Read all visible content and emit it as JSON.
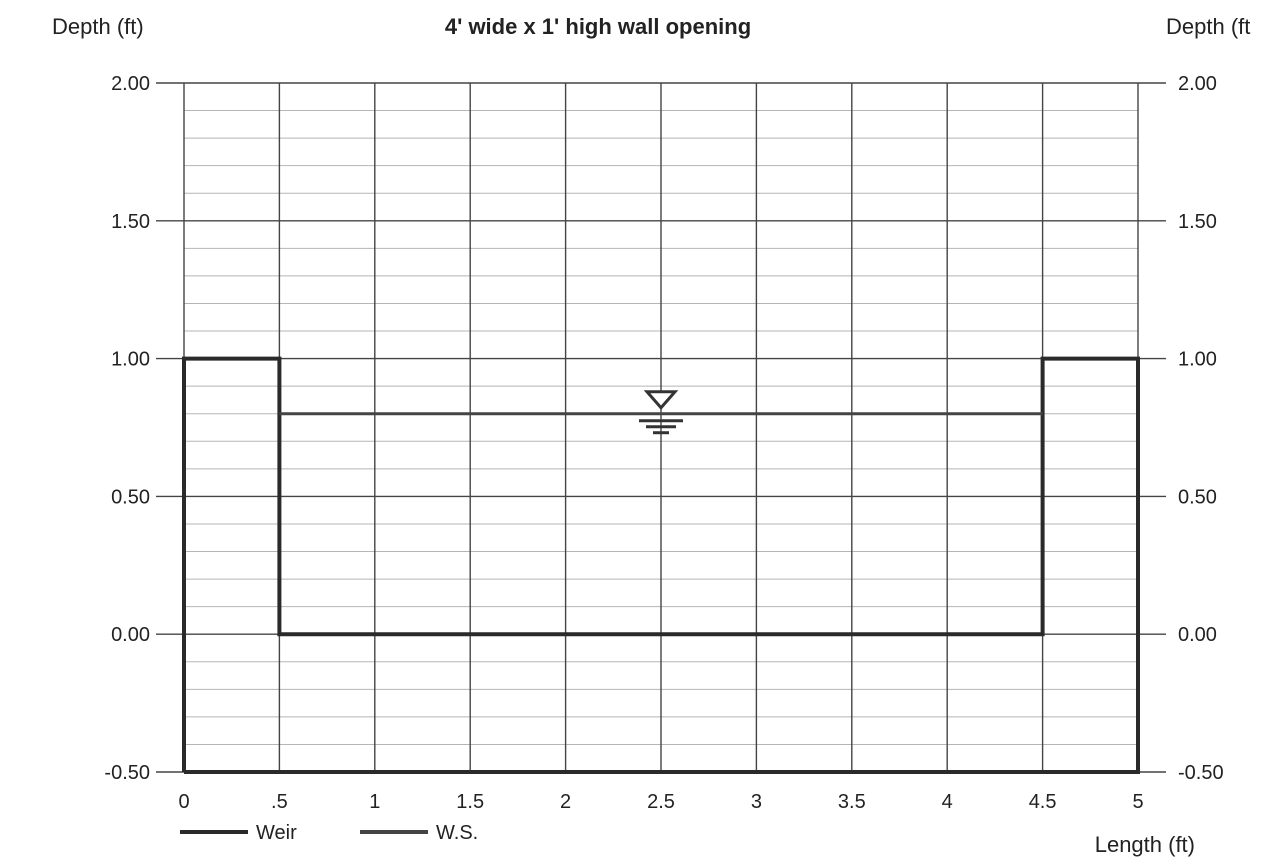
{
  "chart_data": {
    "type": "line",
    "title": "4' wide x 1' high wall opening",
    "ylabel_left": "Depth (ft)",
    "ylabel_right": "Depth (ft",
    "xlabel": "Length (ft)",
    "xlim": [
      0,
      5
    ],
    "ylim": [
      -0.5,
      2.0
    ],
    "x_ticks": [
      {
        "value": 0,
        "label": "0"
      },
      {
        "value": 0.5,
        "label": ".5"
      },
      {
        "value": 1,
        "label": "1"
      },
      {
        "value": 1.5,
        "label": "1.5"
      },
      {
        "value": 2,
        "label": "2"
      },
      {
        "value": 2.5,
        "label": "2.5"
      },
      {
        "value": 3,
        "label": "3"
      },
      {
        "value": 3.5,
        "label": "3.5"
      },
      {
        "value": 4,
        "label": "4"
      },
      {
        "value": 4.5,
        "label": "4.5"
      },
      {
        "value": 5,
        "label": "5"
      }
    ],
    "y_ticks": [
      {
        "value": 2.0,
        "label": "2.00"
      },
      {
        "value": 1.5,
        "label": "1.50"
      },
      {
        "value": 1.0,
        "label": "1.00"
      },
      {
        "value": 0.5,
        "label": "0.50"
      },
      {
        "value": 0.0,
        "label": "0.00"
      },
      {
        "value": -0.5,
        "label": "-0.50"
      }
    ],
    "minor_y_step": 0.1,
    "grid": true,
    "legend_position": "bottom-left",
    "series": [
      {
        "name": "Weir",
        "color": "#2a2a2a",
        "points": [
          [
            0,
            -0.5
          ],
          [
            0,
            1.0
          ],
          [
            0.5,
            1.0
          ],
          [
            0.5,
            0.0
          ],
          [
            4.5,
            0.0
          ],
          [
            4.5,
            1.0
          ],
          [
            5,
            1.0
          ],
          [
            5,
            -0.5
          ],
          [
            0,
            -0.5
          ]
        ]
      },
      {
        "name": "W.S.",
        "color": "#444444",
        "points": [
          [
            0.5,
            0.8
          ],
          [
            4.5,
            0.8
          ]
        ]
      }
    ],
    "water_surface_marker": {
      "x": 2.5,
      "y": 0.8
    }
  }
}
